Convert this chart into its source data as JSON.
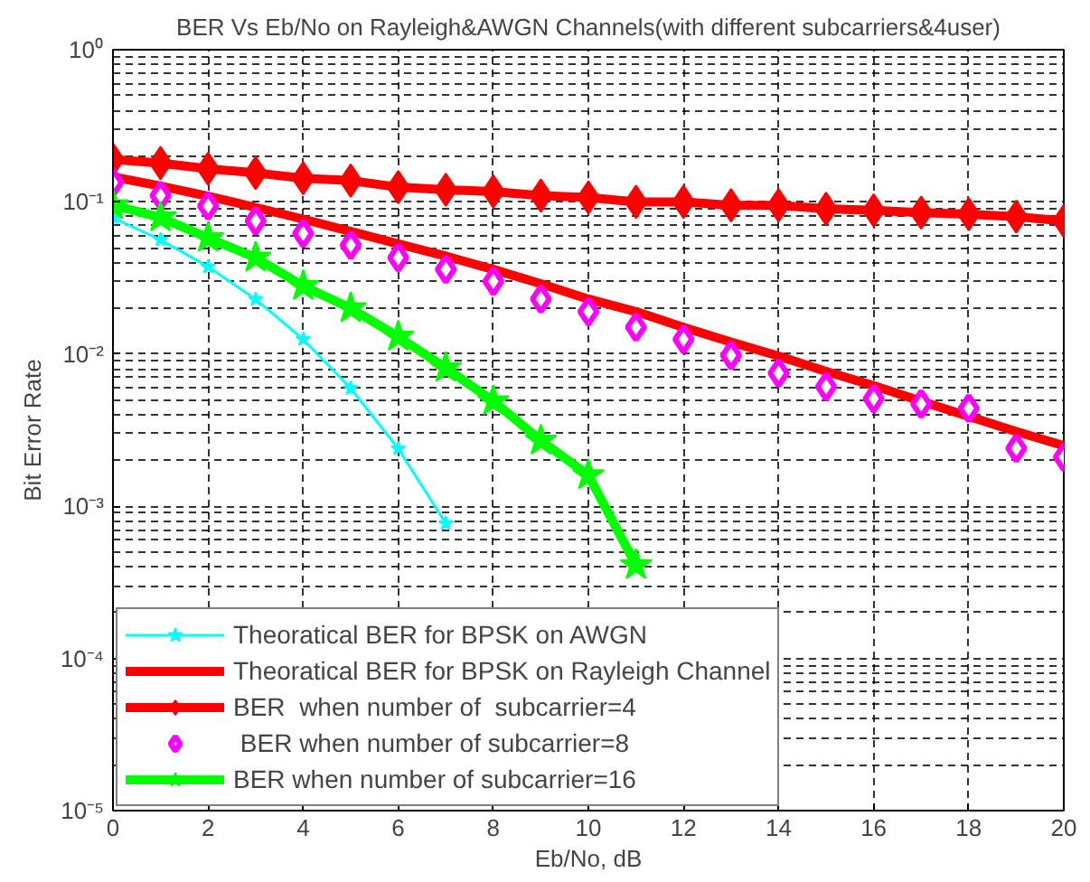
{
  "chart_data": {
    "type": "line",
    "title": "BER Vs Eb/No on Rayleigh&AWGN Channels(with different subcarriers&4user)",
    "xlabel": "Eb/No, dB",
    "ylabel": "Bit Error Rate",
    "x": [
      0,
      1,
      2,
      3,
      4,
      5,
      6,
      7,
      8,
      9,
      10,
      11,
      12,
      13,
      14,
      15,
      16,
      17,
      18,
      19,
      20
    ],
    "series": [
      {
        "name": "Theoratical BER for BPSK on AWGN",
        "color": "#00ffff",
        "marker": "star",
        "values": [
          0.0786,
          0.0563,
          0.0375,
          0.0229,
          0.0125,
          0.00595,
          0.00239,
          0.00077,
          null,
          null,
          null,
          null,
          null,
          null,
          null,
          null,
          null,
          null,
          null,
          null,
          null
        ]
      },
      {
        "name": "Theoratical BER for BPSK on Rayleigh Channel",
        "color": "#ff0000",
        "marker": "none",
        "values": [
          0.146,
          0.127,
          0.109,
          0.092,
          0.077,
          0.064,
          0.053,
          0.044,
          0.036,
          0.029,
          0.023,
          0.019,
          0.015,
          0.012,
          0.0097,
          0.0077,
          0.0062,
          0.0049,
          0.0039,
          0.0031,
          0.0025
        ]
      },
      {
        "name": "BER  when number of  subcarrier=4",
        "color": "#ff0000",
        "marker": "diamond",
        "values": [
          0.19,
          0.18,
          0.165,
          0.155,
          0.143,
          0.138,
          0.125,
          0.12,
          0.117,
          0.11,
          0.107,
          0.1,
          0.1,
          0.095,
          0.095,
          0.09,
          0.088,
          0.085,
          0.083,
          0.08,
          0.075
        ]
      },
      {
        "name": " BER when number of subcarrier=8",
        "type": "scatter",
        "color": "#ff00ff",
        "marker": "diamond",
        "values": [
          0.134,
          0.11,
          0.094,
          0.075,
          0.062,
          0.052,
          0.043,
          0.036,
          0.03,
          0.023,
          0.019,
          0.015,
          0.0125,
          0.0098,
          0.0075,
          0.0061,
          0.0051,
          0.0047,
          0.0044,
          0.0024,
          0.0021
        ]
      },
      {
        "name": "BER when number of subcarrier=16",
        "color": "#00ff00",
        "marker": "star",
        "values": [
          0.095,
          0.079,
          0.058,
          0.043,
          0.028,
          0.02,
          0.013,
          0.0081,
          0.0049,
          0.0027,
          0.0016,
          0.00041,
          null,
          null,
          null,
          null,
          null,
          null,
          null,
          null,
          null
        ]
      }
    ],
    "log": "y",
    "xlim": [
      0,
      20
    ],
    "ylim": [
      1e-05,
      1
    ],
    "xticks": [
      0,
      2,
      4,
      6,
      8,
      10,
      12,
      14,
      16,
      18,
      20
    ],
    "yticks": [
      {
        "value": 1e-05,
        "label": "10⁻⁵"
      },
      {
        "value": 0.0001,
        "label": "10⁻⁴"
      },
      {
        "value": 0.001,
        "label": "10⁻³"
      },
      {
        "value": 0.01,
        "label": "10⁻²"
      },
      {
        "value": 0.1,
        "label": "10⁻¹"
      },
      {
        "value": 1,
        "label": "10⁰"
      }
    ],
    "grid": true,
    "legend": "bottom left",
    "line_style": "solid"
  }
}
